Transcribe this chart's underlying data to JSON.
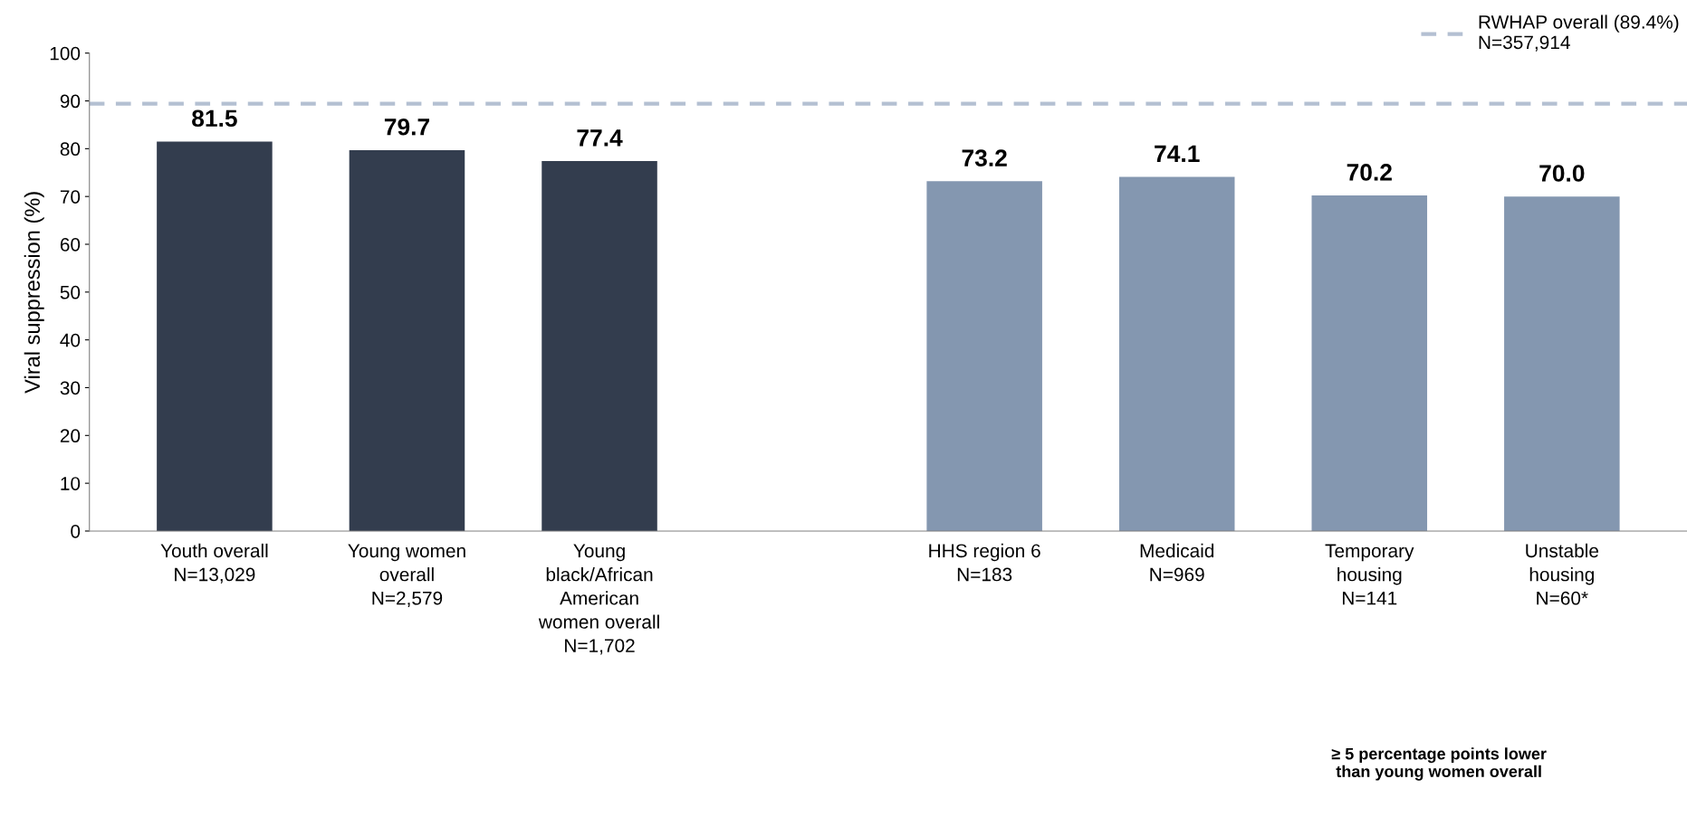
{
  "chart_data": {
    "type": "bar",
    "ylabel": "Viral suppression (%)",
    "categories": [
      "Youth overall\nN=13,029",
      "Young women\noverall\nN=2,579",
      "Young\nblack/African\nAmerican\nwomen overall\nN=1,702",
      null,
      "HHS region 6\nN=183",
      "Medicaid\nN=969",
      "Temporary\nhousing\nN=141",
      "Unstable\nhousing\nN=60*"
    ],
    "values": [
      81.5,
      79.7,
      77.4,
      null,
      73.2,
      74.1,
      70.2,
      70.0
    ],
    "value_labels": [
      "81.5",
      "79.7",
      "77.4",
      null,
      "73.2",
      "74.1",
      "70.2",
      "70.0"
    ],
    "colors": [
      "#333d4e",
      "#333d4e",
      "#333d4e",
      "#333d4e",
      "#8497b0",
      "#8497b0",
      "#8497b0",
      "#8497b0"
    ],
    "ylim": [
      0,
      100
    ],
    "yticks": [
      0,
      10,
      20,
      30,
      40,
      50,
      60,
      70,
      80,
      90,
      100
    ],
    "ref_lines": [
      {
        "axis": "y",
        "value": 89.4,
        "label": "RWHAP overall (89.4%)\nN=357,914",
        "color": "#b4c0d2",
        "line_style": "dashed"
      }
    ],
    "annotations": [
      "≥ 5 percentage points lower\nthan young women overall"
    ],
    "legend": "top right",
    "grid": false
  }
}
